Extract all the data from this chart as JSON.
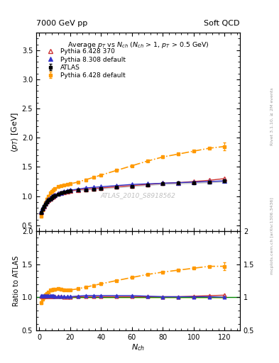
{
  "title_top": "7000 GeV pp",
  "title_right": "Soft QCD",
  "plot_title": "Average $p_T$ vs $N_{ch}$ ($N_{ch}$ > 1, $p_T$ > 0.5 GeV)",
  "ylabel_main": "$\\langle p_T \\rangle$ [GeV]",
  "ylabel_ratio": "Ratio to ATLAS",
  "xlabel": "$N_{ch}$",
  "ylim_main": [
    0.4,
    3.8
  ],
  "ylim_ratio": [
    0.5,
    2.0
  ],
  "xlim": [
    -2,
    130
  ],
  "watermark": "ATLAS_2010_S8918562",
  "right_label": "Rivet 3.1.10, ≥ 2M events",
  "right_label2": "mcplots.cern.ch [arXiv:1306.3436]",
  "atlas_x": [
    1,
    2,
    3,
    4,
    5,
    6,
    7,
    8,
    9,
    10,
    12,
    14,
    16,
    18,
    20,
    25,
    30,
    35,
    40,
    50,
    60,
    70,
    80,
    90,
    100,
    110,
    120
  ],
  "atlas_y": [
    0.72,
    0.78,
    0.82,
    0.86,
    0.9,
    0.93,
    0.95,
    0.97,
    0.99,
    1.01,
    1.03,
    1.05,
    1.07,
    1.08,
    1.09,
    1.1,
    1.11,
    1.12,
    1.13,
    1.15,
    1.17,
    1.19,
    1.21,
    1.22,
    1.23,
    1.24,
    1.26
  ],
  "atlas_yerr": [
    0.015,
    0.015,
    0.015,
    0.012,
    0.01,
    0.01,
    0.01,
    0.01,
    0.01,
    0.01,
    0.01,
    0.01,
    0.01,
    0.01,
    0.01,
    0.01,
    0.01,
    0.01,
    0.01,
    0.01,
    0.01,
    0.012,
    0.012,
    0.013,
    0.014,
    0.015,
    0.02
  ],
  "p6_370_x": [
    1,
    2,
    3,
    4,
    5,
    6,
    7,
    8,
    9,
    10,
    12,
    14,
    16,
    18,
    20,
    25,
    30,
    35,
    40,
    50,
    60,
    70,
    80,
    90,
    100,
    110,
    120
  ],
  "p6_370_y": [
    0.73,
    0.79,
    0.83,
    0.87,
    0.91,
    0.94,
    0.96,
    0.98,
    1.0,
    1.02,
    1.04,
    1.06,
    1.07,
    1.08,
    1.09,
    1.11,
    1.12,
    1.13,
    1.14,
    1.16,
    1.18,
    1.2,
    1.22,
    1.23,
    1.25,
    1.27,
    1.3
  ],
  "p6_default_x": [
    1,
    2,
    3,
    4,
    5,
    6,
    7,
    8,
    9,
    10,
    12,
    14,
    16,
    18,
    20,
    25,
    30,
    35,
    40,
    50,
    60,
    70,
    80,
    90,
    100,
    110,
    120
  ],
  "p6_default_y": [
    0.66,
    0.76,
    0.82,
    0.89,
    0.95,
    1.0,
    1.05,
    1.08,
    1.11,
    1.13,
    1.16,
    1.18,
    1.19,
    1.2,
    1.21,
    1.24,
    1.28,
    1.32,
    1.36,
    1.44,
    1.52,
    1.6,
    1.67,
    1.72,
    1.77,
    1.82,
    1.85
  ],
  "p6_default_yerr_last": 0.07,
  "p8_default_x": [
    1,
    2,
    3,
    4,
    5,
    6,
    7,
    8,
    9,
    10,
    12,
    14,
    16,
    18,
    20,
    25,
    30,
    35,
    40,
    50,
    60,
    70,
    80,
    90,
    100,
    110,
    120
  ],
  "p8_default_y": [
    0.74,
    0.8,
    0.84,
    0.88,
    0.92,
    0.95,
    0.97,
    0.99,
    1.01,
    1.02,
    1.04,
    1.06,
    1.08,
    1.09,
    1.1,
    1.12,
    1.14,
    1.15,
    1.16,
    1.18,
    1.2,
    1.21,
    1.22,
    1.23,
    1.24,
    1.25,
    1.26
  ],
  "atlas_band_color": "#aaaaaa",
  "p6_370_color": "#cc3333",
  "p6_default_color": "#ff9900",
  "p8_default_color": "#3333cc",
  "ratio_band_ylow_color": "#ccdd44",
  "ratio_band_yhigh_color": "#aacc00",
  "green_line_color": "#008800"
}
